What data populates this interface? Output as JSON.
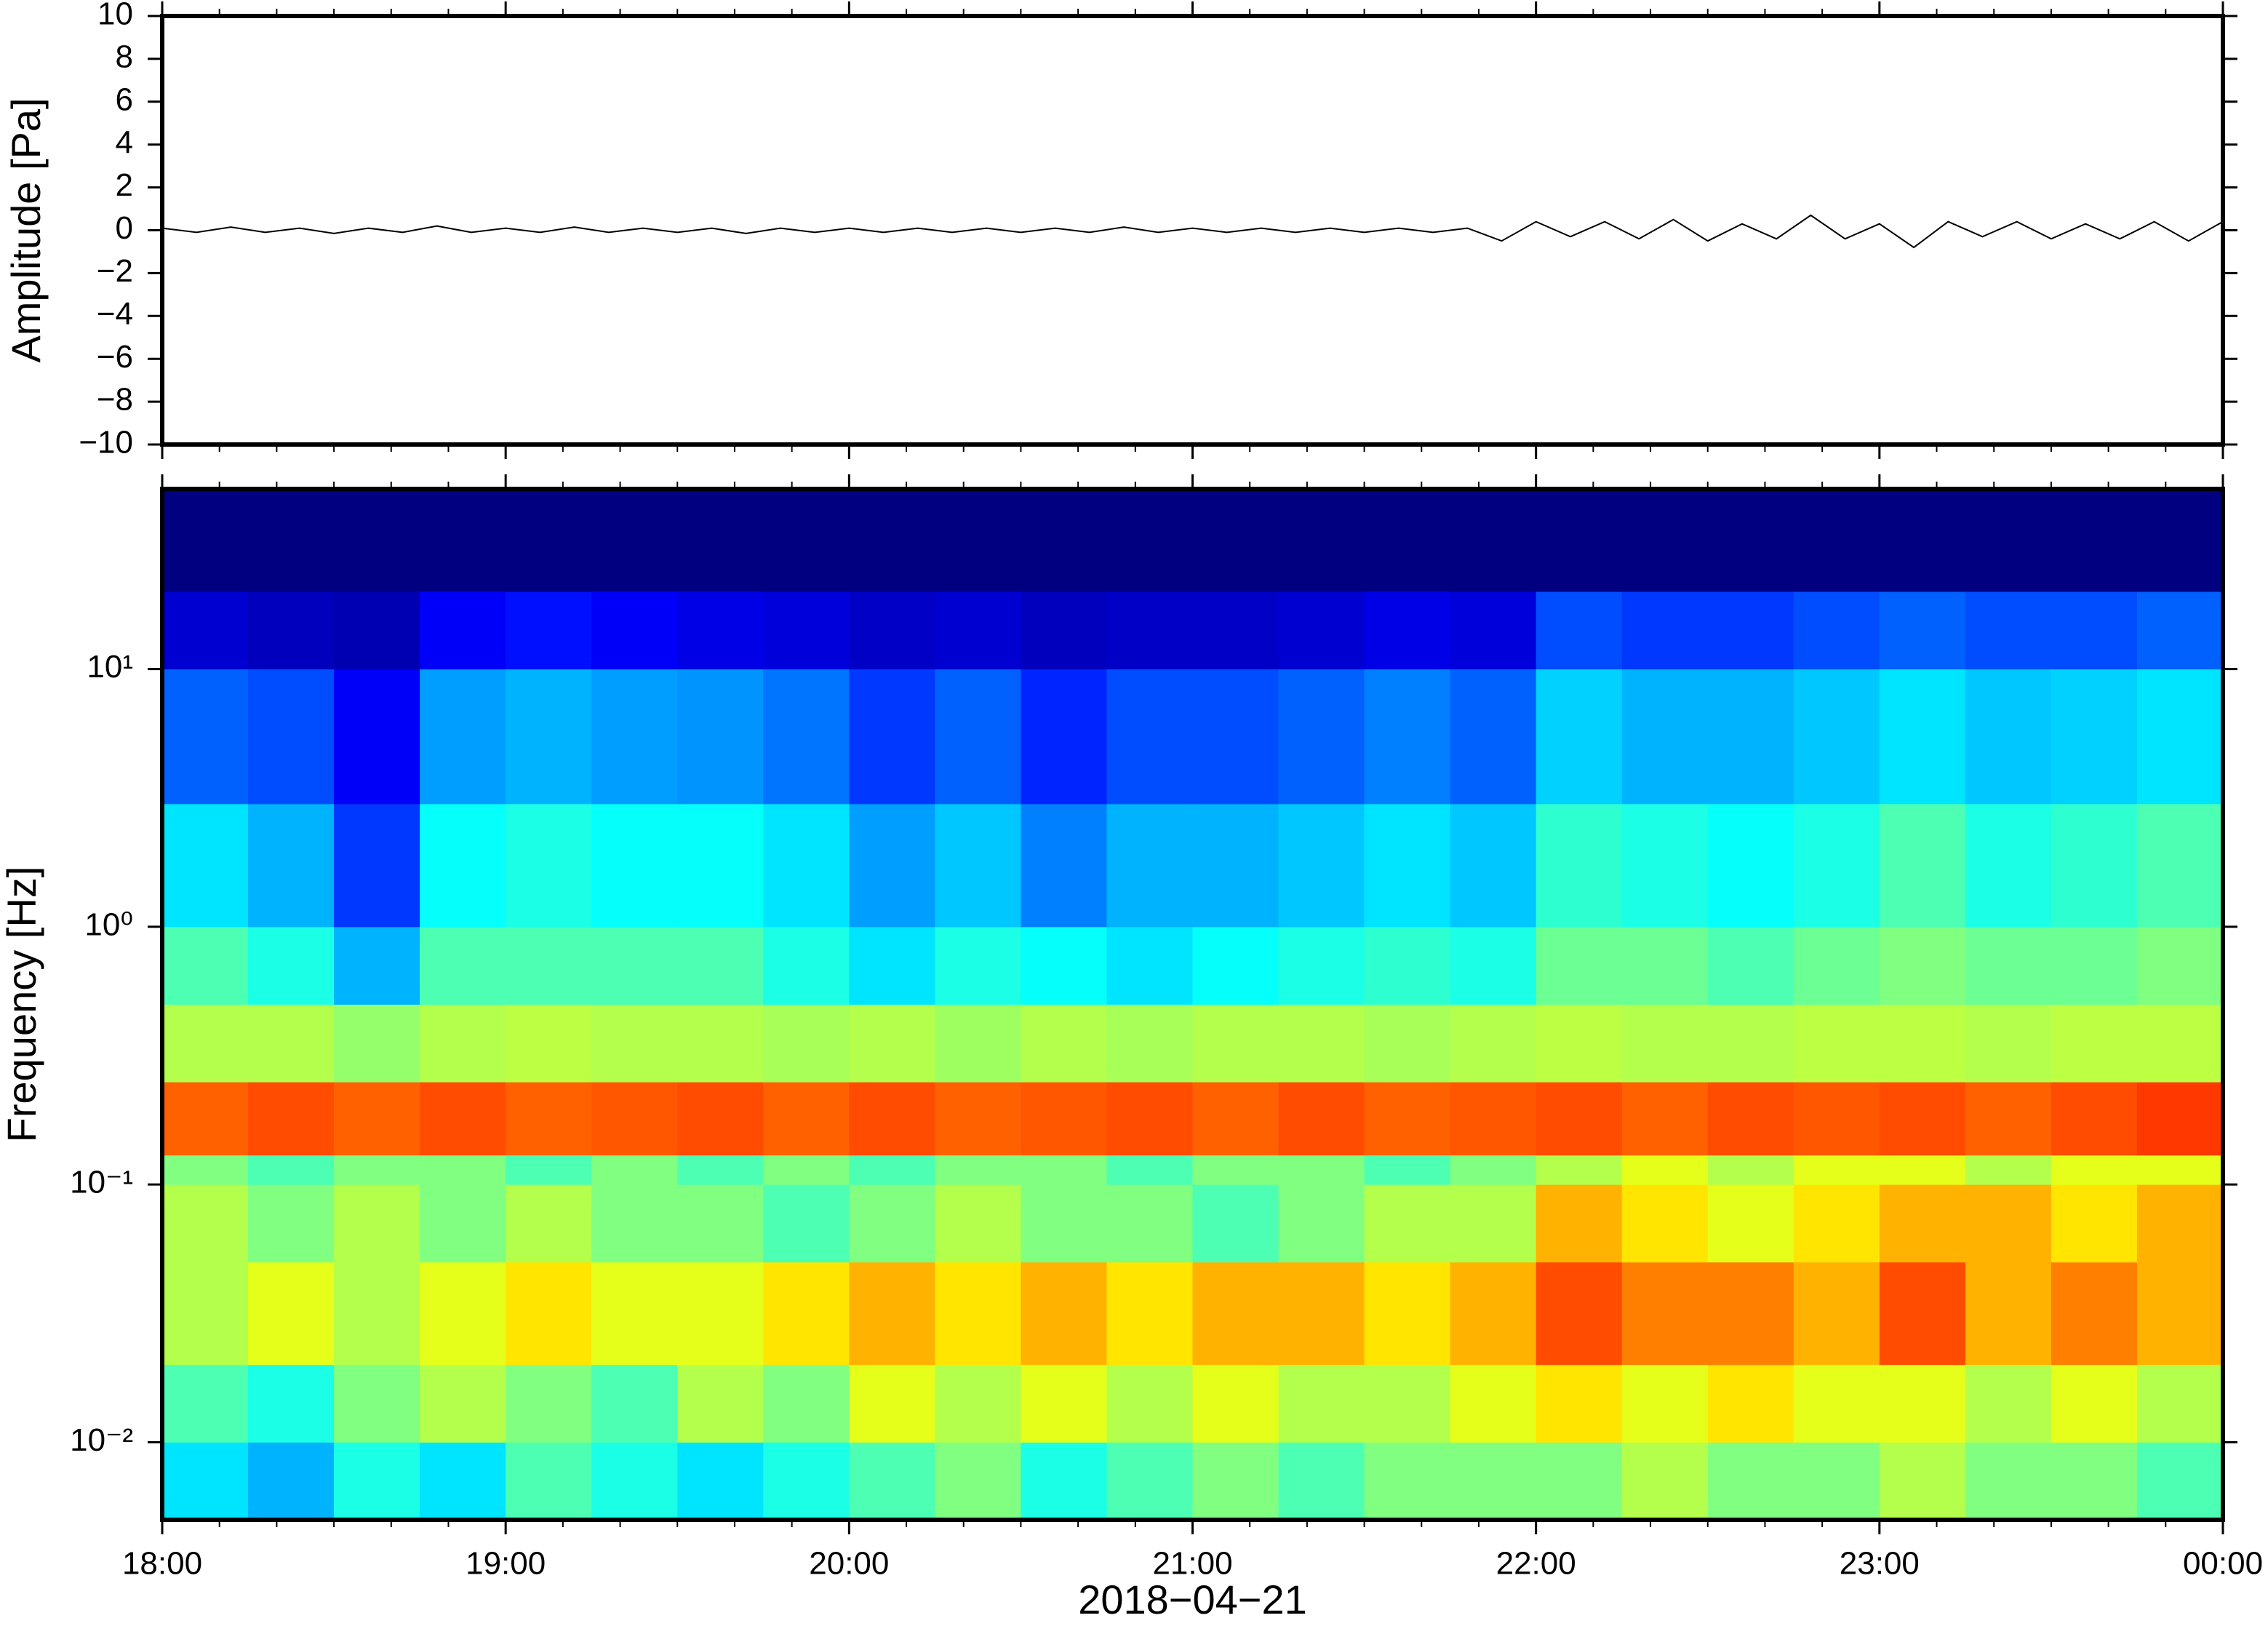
{
  "chart_data": [
    {
      "type": "line",
      "ylabel": "Amplitude [Pa]",
      "color": "#000000",
      "xlim": [
        18,
        24
      ],
      "ylim": [
        -10,
        10
      ],
      "yticks": [
        {
          "value": -10,
          "label": "−10"
        },
        {
          "value": -8,
          "label": "−8"
        },
        {
          "value": -6,
          "label": "−6"
        },
        {
          "value": -4,
          "label": "−4"
        },
        {
          "value": -2,
          "label": "−2"
        },
        0,
        2,
        4,
        6,
        8,
        10
      ],
      "x": [
        18.0,
        18.1,
        18.2,
        18.3,
        18.4,
        18.5,
        18.6,
        18.7,
        18.8,
        18.9,
        19.0,
        19.1,
        19.2,
        19.3,
        19.4,
        19.5,
        19.6,
        19.7,
        19.8,
        19.9,
        20.0,
        20.1,
        20.2,
        20.3,
        20.4,
        20.5,
        20.6,
        20.7,
        20.8,
        20.9,
        21.0,
        21.1,
        21.2,
        21.3,
        21.4,
        21.5,
        21.6,
        21.7,
        21.8,
        21.9,
        22.0,
        22.1,
        22.2,
        22.3,
        22.4,
        22.5,
        22.6,
        22.7,
        22.8,
        22.9,
        23.0,
        23.1,
        23.2,
        23.3,
        23.4,
        23.5,
        23.6,
        23.7,
        23.8,
        23.9,
        24.0
      ],
      "values": [
        0.1,
        -0.1,
        0.15,
        -0.1,
        0.1,
        -0.15,
        0.1,
        -0.1,
        0.2,
        -0.1,
        0.1,
        -0.1,
        0.15,
        -0.1,
        0.1,
        -0.1,
        0.1,
        -0.15,
        0.1,
        -0.1,
        0.1,
        -0.1,
        0.1,
        -0.1,
        0.1,
        -0.1,
        0.1,
        -0.1,
        0.15,
        -0.1,
        0.1,
        -0.1,
        0.1,
        -0.1,
        0.1,
        -0.1,
        0.1,
        -0.1,
        0.1,
        -0.5,
        0.4,
        -0.3,
        0.4,
        -0.4,
        0.5,
        -0.5,
        0.3,
        -0.4,
        0.7,
        -0.4,
        0.3,
        -0.8,
        0.4,
        -0.3,
        0.4,
        -0.4,
        0.3,
        -0.4,
        0.4,
        -0.5,
        0.4
      ]
    },
    {
      "type": "heatmap",
      "ylabel": "Frequency [Hz]",
      "xlabel": "2018−04−21",
      "log_y": true,
      "colormap": "jet",
      "zlim": [
        0,
        1
      ],
      "xlim": [
        18,
        24
      ],
      "ylim": [
        0.005,
        50
      ],
      "xticks": [
        {
          "value": 18,
          "label": "18:00"
        },
        {
          "value": 19,
          "label": "19:00"
        },
        {
          "value": 20,
          "label": "20:00"
        },
        {
          "value": 21,
          "label": "21:00"
        },
        {
          "value": 22,
          "label": "22:00"
        },
        {
          "value": 23,
          "label": "23:00"
        },
        {
          "value": 24,
          "label": "00:00"
        }
      ],
      "yticks": [
        {
          "value": 0.01,
          "label": "10⁻²"
        },
        {
          "value": 0.1,
          "label": "10⁻¹"
        },
        {
          "value": 1,
          "label": "10⁰"
        },
        {
          "value": 10,
          "label": "10¹"
        }
      ],
      "x_edges": [
        18,
        18.25,
        18.5,
        18.75,
        19,
        19.25,
        19.5,
        19.75,
        20,
        20.25,
        20.5,
        20.75,
        21,
        21.25,
        21.5,
        21.75,
        22,
        22.25,
        22.5,
        22.75,
        23,
        23.25,
        23.5,
        23.75,
        24
      ],
      "y_edges": [
        0.005,
        0.01,
        0.02,
        0.05,
        0.1,
        0.13,
        0.25,
        0.5,
        1,
        3,
        10,
        20,
        50
      ],
      "z": [
        [
          0.35,
          0.3,
          0.4,
          0.35,
          0.45,
          0.4,
          0.35,
          0.4,
          0.45,
          0.5,
          0.4,
          0.45,
          0.5,
          0.45,
          0.5,
          0.5,
          0.5,
          0.55,
          0.5,
          0.5,
          0.55,
          0.5,
          0.5,
          0.45
        ],
        [
          0.45,
          0.4,
          0.5,
          0.55,
          0.5,
          0.45,
          0.55,
          0.5,
          0.6,
          0.55,
          0.6,
          0.55,
          0.6,
          0.55,
          0.55,
          0.6,
          0.65,
          0.6,
          0.65,
          0.6,
          0.6,
          0.55,
          0.6,
          0.55
        ],
        [
          0.55,
          0.6,
          0.55,
          0.6,
          0.65,
          0.6,
          0.6,
          0.65,
          0.7,
          0.65,
          0.7,
          0.65,
          0.7,
          0.7,
          0.65,
          0.7,
          0.8,
          0.75,
          0.75,
          0.7,
          0.8,
          0.7,
          0.75,
          0.7
        ],
        [
          0.55,
          0.5,
          0.55,
          0.5,
          0.55,
          0.5,
          0.5,
          0.45,
          0.5,
          0.55,
          0.5,
          0.5,
          0.45,
          0.5,
          0.55,
          0.55,
          0.7,
          0.65,
          0.6,
          0.65,
          0.7,
          0.7,
          0.65,
          0.7
        ],
        [
          0.5,
          0.45,
          0.5,
          0.5,
          0.45,
          0.5,
          0.45,
          0.5,
          0.45,
          0.5,
          0.5,
          0.45,
          0.5,
          0.5,
          0.45,
          0.5,
          0.55,
          0.6,
          0.55,
          0.6,
          0.6,
          0.55,
          0.6,
          0.6
        ],
        [
          0.78,
          0.8,
          0.78,
          0.8,
          0.78,
          0.79,
          0.8,
          0.78,
          0.8,
          0.78,
          0.79,
          0.8,
          0.78,
          0.8,
          0.78,
          0.79,
          0.8,
          0.78,
          0.8,
          0.79,
          0.8,
          0.78,
          0.8,
          0.82
        ],
        [
          0.55,
          0.55,
          0.52,
          0.55,
          0.56,
          0.55,
          0.55,
          0.54,
          0.55,
          0.53,
          0.55,
          0.54,
          0.55,
          0.55,
          0.54,
          0.55,
          0.56,
          0.55,
          0.55,
          0.56,
          0.56,
          0.55,
          0.56,
          0.56
        ],
        [
          0.45,
          0.4,
          0.3,
          0.45,
          0.45,
          0.45,
          0.45,
          0.4,
          0.35,
          0.4,
          0.38,
          0.35,
          0.38,
          0.4,
          0.42,
          0.4,
          0.48,
          0.48,
          0.45,
          0.48,
          0.5,
          0.48,
          0.48,
          0.5
        ],
        [
          0.35,
          0.3,
          0.18,
          0.38,
          0.4,
          0.38,
          0.38,
          0.35,
          0.28,
          0.32,
          0.25,
          0.3,
          0.3,
          0.32,
          0.35,
          0.32,
          0.42,
          0.4,
          0.38,
          0.4,
          0.45,
          0.4,
          0.42,
          0.45
        ],
        [
          0.22,
          0.2,
          0.12,
          0.28,
          0.3,
          0.28,
          0.27,
          0.24,
          0.18,
          0.22,
          0.16,
          0.2,
          0.2,
          0.22,
          0.25,
          0.22,
          0.33,
          0.3,
          0.3,
          0.32,
          0.35,
          0.32,
          0.33,
          0.35
        ],
        [
          0.08,
          0.06,
          0.05,
          0.12,
          0.14,
          0.12,
          0.1,
          0.09,
          0.07,
          0.08,
          0.06,
          0.07,
          0.07,
          0.08,
          0.1,
          0.09,
          0.2,
          0.18,
          0.18,
          0.2,
          0.22,
          0.2,
          0.2,
          0.22
        ],
        [
          0,
          0,
          0,
          0,
          0,
          0,
          0,
          0,
          0,
          0,
          0,
          0,
          0,
          0,
          0,
          0,
          0,
          0,
          0,
          0,
          0,
          0,
          0,
          0
        ]
      ]
    }
  ]
}
